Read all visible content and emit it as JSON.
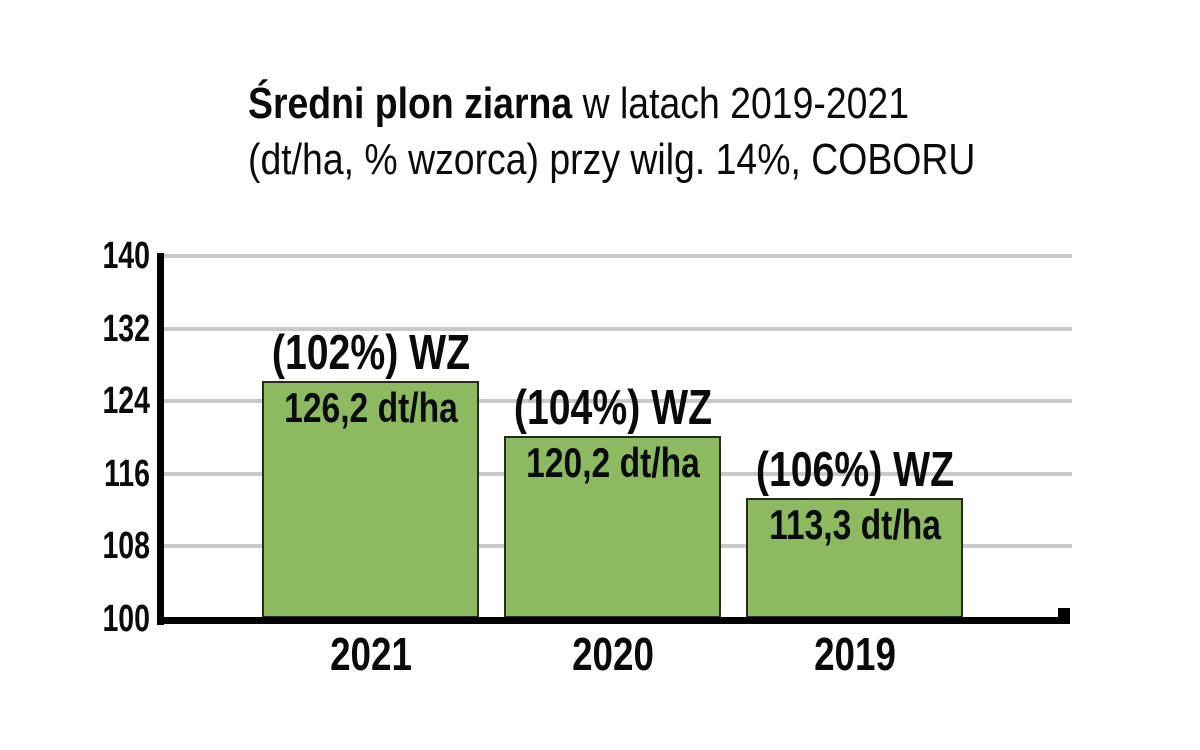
{
  "title": {
    "bold": "Średni plon ziarna",
    "line1_rest": " w latach 2019-2021",
    "line2": "(dt/ha, % wzorca) przy wilg. 14%, COBORU"
  },
  "chart_data": {
    "type": "bar",
    "title": "Średni plon ziarna w latach 2019-2021 (dt/ha, % wzorca) przy wilg. 14%, COBORU",
    "categories": [
      "2021",
      "2020",
      "2019"
    ],
    "values": [
      126.2,
      120.2,
      113.3
    ],
    "bar_labels_percent": [
      "(102%) WZ",
      "(104%) WZ",
      "(106%) WZ"
    ],
    "bar_labels_value": [
      "126,2 dt/ha",
      "120,2 dt/ha",
      "113,3 dt/ha"
    ],
    "unit": "dt/ha",
    "xlabel": "",
    "ylabel": "",
    "ylim": [
      100,
      140
    ],
    "yticks": [
      100,
      108,
      116,
      124,
      132,
      140
    ],
    "grid": true,
    "legend": "none",
    "colors": {
      "bar_fill": "#8dba60",
      "bar_border": "#252c1e",
      "gridline": "#c9c9c9",
      "axis": "#000000",
      "text": "#0b0b0b",
      "background": "#ffffff"
    }
  }
}
